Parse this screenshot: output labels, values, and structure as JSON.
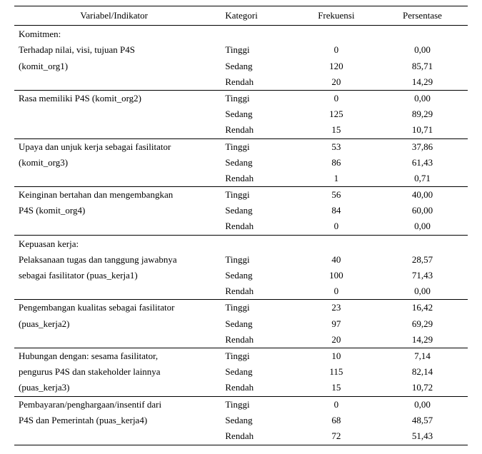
{
  "headers": {
    "var": "Variabel/Indikator",
    "kat": "Kategori",
    "frek": "Frekuensi",
    "pers": "Persentase"
  },
  "section1": "Komitmen:",
  "section2": "Kepuasan kerja:",
  "groups": [
    {
      "l1": "Terhadap nilai, visi, tujuan P4S",
      "l2": "(komit_org1)",
      "rows": [
        {
          "kat": "Tinggi",
          "frek": "0",
          "pers": "0,00"
        },
        {
          "kat": "Sedang",
          "frek": "120",
          "pers": "85,71"
        },
        {
          "kat": "Rendah",
          "frek": "20",
          "pers": "14,29"
        }
      ]
    },
    {
      "l1": "Rasa memiliki P4S (komit_org2)",
      "l2": "",
      "rows": [
        {
          "kat": "Tinggi",
          "frek": "0",
          "pers": "0,00"
        },
        {
          "kat": "Sedang",
          "frek": "125",
          "pers": "89,29"
        },
        {
          "kat": "Rendah",
          "frek": "15",
          "pers": "10,71"
        }
      ]
    },
    {
      "l1": "Upaya dan unjuk kerja sebagai fasilitator",
      "l2": "(komit_org3)",
      "rows": [
        {
          "kat": "Tinggi",
          "frek": "53",
          "pers": "37,86"
        },
        {
          "kat": "Sedang",
          "frek": "86",
          "pers": "61,43"
        },
        {
          "kat": "Rendah",
          "frek": "1",
          "pers": "0,71"
        }
      ]
    },
    {
      "l1": "Keinginan bertahan dan mengembangkan",
      "l2": "P4S (komit_org4)",
      "rows": [
        {
          "kat": "Tinggi",
          "frek": "56",
          "pers": "40,00"
        },
        {
          "kat": "Sedang",
          "frek": "84",
          "pers": "60,00"
        },
        {
          "kat": "Rendah",
          "frek": "0",
          "pers": "0,00"
        }
      ]
    },
    {
      "l1": "Pelaksanaan tugas dan tanggung jawabnya",
      "l2": "sebagai fasilitator (puas_kerja1)",
      "rows": [
        {
          "kat": "Tinggi",
          "frek": "40",
          "pers": "28,57"
        },
        {
          "kat": "Sedang",
          "frek": "100",
          "pers": "71,43"
        },
        {
          "kat": "Rendah",
          "frek": "0",
          "pers": "0,00"
        }
      ]
    },
    {
      "l1": "Pengembangan kualitas sebagai fasilitator",
      "l2": "(puas_kerja2)",
      "rows": [
        {
          "kat": "Tinggi",
          "frek": "23",
          "pers": "16,42"
        },
        {
          "kat": "Sedang",
          "frek": "97",
          "pers": "69,29"
        },
        {
          "kat": "Rendah",
          "frek": "20",
          "pers": "14,29"
        }
      ]
    },
    {
      "l1": "Hubungan dengan:  sesama fasilitator,",
      "l2": "pengurus P4S dan stakeholder lainnya",
      "l3": "(puas_kerja3)",
      "rows": [
        {
          "kat": "Tinggi",
          "frek": "10",
          "pers": "7,14"
        },
        {
          "kat": "Sedang",
          "frek": "115",
          "pers": "82,14"
        },
        {
          "kat": "Rendah",
          "frek": "15",
          "pers": "10,72"
        }
      ]
    },
    {
      "l1": "Pembayaran/penghargaan/insentif dari",
      "l2": "P4S dan Pemerintah (puas_kerja4)",
      "rows": [
        {
          "kat": "Tinggi",
          "frek": "0",
          "pers": "0,00"
        },
        {
          "kat": "Sedang",
          "frek": "68",
          "pers": "48,57"
        },
        {
          "kat": "Rendah",
          "frek": "72",
          "pers": "51,43"
        }
      ]
    }
  ]
}
